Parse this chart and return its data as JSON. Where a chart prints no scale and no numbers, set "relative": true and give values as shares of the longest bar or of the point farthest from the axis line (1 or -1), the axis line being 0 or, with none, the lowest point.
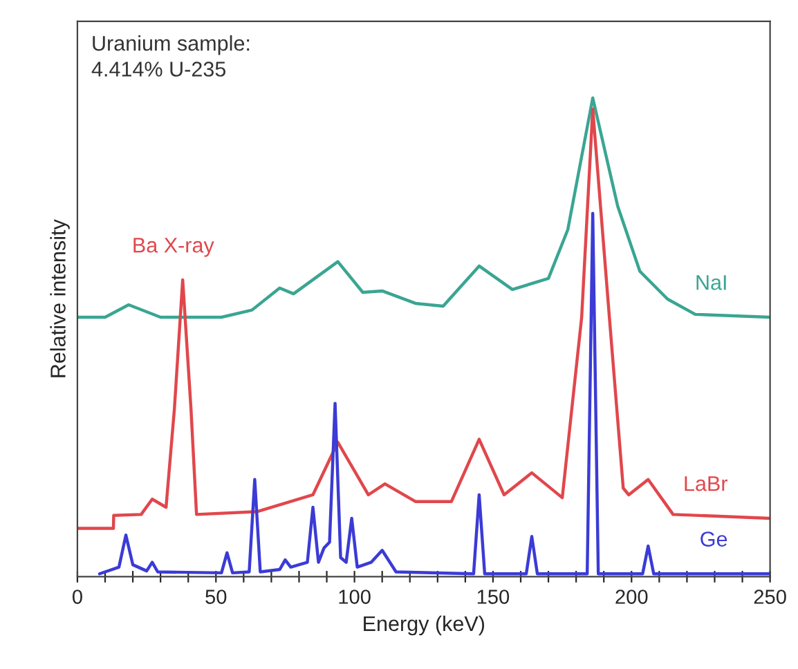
{
  "chart_data": {
    "type": "line",
    "relative": true,
    "xlabel": "Energy (keV)",
    "ylabel": "Relative intensity",
    "xlim": [
      0,
      250
    ],
    "xticks": [
      0,
      {
        "value": 10,
        "label": null
      },
      {
        "value": 20,
        "label": null
      },
      {
        "value": 30,
        "label": null
      },
      {
        "value": 40,
        "label": null
      },
      50,
      {
        "value": 60,
        "label": null
      },
      {
        "value": 70,
        "label": null
      },
      {
        "value": 80,
        "label": null
      },
      {
        "value": 90,
        "label": null
      },
      100,
      {
        "value": 110,
        "label": null
      },
      {
        "value": 120,
        "label": null
      },
      {
        "value": 130,
        "label": null
      },
      {
        "value": 140,
        "label": null
      },
      150,
      {
        "value": 160,
        "label": null
      },
      {
        "value": 170,
        "label": null
      },
      {
        "value": 180,
        "label": null
      },
      {
        "value": 190,
        "label": null
      },
      200,
      {
        "value": 210,
        "label": null
      },
      {
        "value": 220,
        "label": null
      },
      {
        "value": 230,
        "label": null
      },
      {
        "value": 240,
        "label": null
      },
      250
    ],
    "grid": false,
    "legend": false,
    "marker": "none",
    "line_style": "solid",
    "annotations": [
      "Uranium sample:\n4.414% U-235",
      {
        "text": "Ba X-ray",
        "x": 38,
        "y": 0.62
      }
    ],
    "series": [
      {
        "name": "NaI",
        "color": "#3aa592",
        "x": [
          0,
          10,
          18.5,
          30,
          52,
          63,
          73,
          78,
          94,
          103,
          110,
          122,
          132,
          145,
          157,
          170,
          177,
          186,
          195,
          203,
          213,
          223,
          250
        ],
        "values": [
          0.542,
          0.542,
          0.568,
          0.542,
          0.542,
          0.557,
          0.603,
          0.591,
          0.658,
          0.594,
          0.597,
          0.571,
          0.565,
          0.649,
          0.6,
          0.623,
          0.725,
          1.0,
          0.774,
          0.638,
          0.58,
          0.548,
          0.542
        ]
      },
      {
        "name": "LaBr",
        "color": "#e0474c",
        "x": [
          0,
          13,
          13.1,
          23,
          27,
          32,
          35,
          38,
          41,
          43,
          65,
          85,
          94,
          105,
          111,
          122,
          135,
          145,
          154,
          164,
          175,
          182,
          186,
          192,
          197,
          199,
          206,
          215,
          250
        ],
        "values": [
          0.101,
          0.101,
          0.128,
          0.13,
          0.162,
          0.145,
          0.35,
          0.62,
          0.35,
          0.13,
          0.136,
          0.171,
          0.281,
          0.171,
          0.194,
          0.157,
          0.157,
          0.287,
          0.171,
          0.217,
          0.165,
          0.542,
          0.977,
          0.542,
          0.185,
          0.171,
          0.203,
          0.13,
          0.122
        ]
      },
      {
        "name": "Ge",
        "color": "#3b3bd6",
        "x": [
          8,
          15,
          17.5,
          20,
          25,
          27,
          29,
          52,
          54,
          56,
          62,
          64,
          66,
          73,
          75,
          77,
          83,
          85,
          87,
          89,
          91,
          93,
          95,
          97,
          99,
          101,
          106,
          110,
          115,
          143,
          145,
          147,
          162,
          164,
          166,
          184,
          186,
          188,
          204,
          206,
          208,
          250
        ],
        "values": [
          0.006,
          0.02,
          0.087,
          0.025,
          0.012,
          0.03,
          0.01,
          0.008,
          0.05,
          0.008,
          0.01,
          0.203,
          0.01,
          0.015,
          0.035,
          0.02,
          0.03,
          0.145,
          0.03,
          0.06,
          0.072,
          0.362,
          0.04,
          0.03,
          0.122,
          0.02,
          0.03,
          0.055,
          0.01,
          0.006,
          0.171,
          0.006,
          0.006,
          0.084,
          0.006,
          0.006,
          0.759,
          0.006,
          0.006,
          0.064,
          0.006,
          0.006
        ]
      }
    ]
  }
}
